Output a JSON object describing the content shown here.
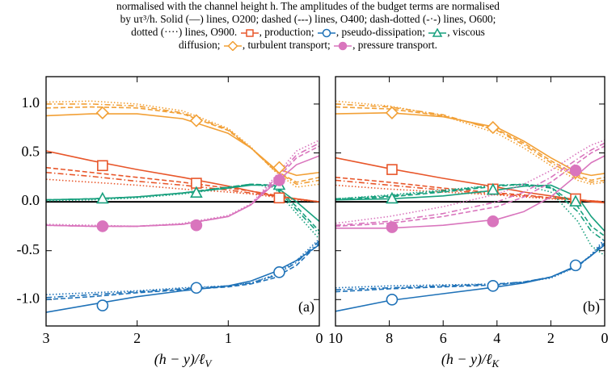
{
  "caption": [
    "normalised with the channel height h. The amplitudes of the budget terms are normalised",
    "by uτ³/h. Solid (—) lines, O200; dashed (‐‐‐) lines, O400; dash-dotted (‐·‐) lines, O600;",
    [
      "dotted (····) lines, O900.",
      ", production;",
      ", pseudo-dissipation;",
      ", viscous"
    ],
    [
      "diffusion;",
      ", turbulent transport;",
      ", pressure transport."
    ]
  ],
  "chart_data": [
    {
      "type": "line",
      "panel_label": "(a)",
      "xlabel": "(h − y)/ℓ",
      "xlabel_subscript": "V",
      "xlim": [
        3,
        0
      ],
      "xticks": [
        3,
        2,
        1,
        0
      ],
      "ylim": [
        -1.27,
        1.28
      ],
      "yticks": [
        {
          "value": 1,
          "label": "1.0"
        },
        0.5,
        {
          "value": 0,
          "label": "0.0"
        },
        -0.5,
        {
          "value": -1,
          "label": "-1.0"
        }
      ],
      "show_ytick_labels": true,
      "zero_line": true,
      "x": [
        3,
        2.5,
        2,
        1.5,
        1,
        0.75,
        0.5,
        0.25,
        0
      ],
      "series": [
        {
          "color": "#e8562a",
          "dash": "solid",
          "values": [
            0.52,
            0.42,
            0.33,
            0.25,
            0.16,
            0.11,
            0.06,
            0.03,
            0.0
          ]
        },
        {
          "color": "#e8562a",
          "dash": "dashed",
          "values": [
            0.35,
            0.3,
            0.25,
            0.2,
            0.14,
            0.11,
            0.07,
            0.03,
            0
          ]
        },
        {
          "color": "#e8562a",
          "dash": "dashdot",
          "values": [
            0.3,
            0.26,
            0.21,
            0.17,
            0.12,
            0.09,
            0.06,
            0.03,
            0
          ]
        },
        {
          "color": "#e8562a",
          "dash": "dotted",
          "values": [
            0.23,
            0.2,
            0.17,
            0.13,
            0.1,
            0.08,
            0.05,
            0.02,
            0
          ]
        },
        {
          "color": "#1f72b8",
          "dash": "solid",
          "values": [
            -1.13,
            -1.05,
            -0.97,
            -0.91,
            -0.86,
            -0.81,
            -0.72,
            -0.6,
            -0.44
          ]
        },
        {
          "color": "#1f72b8",
          "dash": "dashed",
          "values": [
            -1.0,
            -0.97,
            -0.93,
            -0.9,
            -0.87,
            -0.84,
            -0.78,
            -0.65,
            -0.42
          ]
        },
        {
          "color": "#1f72b8",
          "dash": "dashdot",
          "values": [
            -0.98,
            -0.95,
            -0.92,
            -0.89,
            -0.86,
            -0.83,
            -0.76,
            -0.62,
            -0.4
          ]
        },
        {
          "color": "#1f72b8",
          "dash": "dotted",
          "values": [
            -0.95,
            -0.93,
            -0.91,
            -0.88,
            -0.86,
            -0.83,
            -0.75,
            -0.6,
            -0.38
          ]
        },
        {
          "color": "#18a07e",
          "dash": "solid",
          "values": [
            0.02,
            0.03,
            0.05,
            0.09,
            0.14,
            0.17,
            0.17,
            0.0,
            -0.2
          ]
        },
        {
          "color": "#18a07e",
          "dash": "dashed",
          "values": [
            0.02,
            0.03,
            0.05,
            0.09,
            0.15,
            0.18,
            0.17,
            -0.05,
            -0.3
          ]
        },
        {
          "color": "#18a07e",
          "dash": "dashdot",
          "values": [
            0.02,
            0.03,
            0.05,
            0.09,
            0.15,
            0.18,
            0.16,
            -0.08,
            -0.33
          ]
        },
        {
          "color": "#18a07e",
          "dash": "dotted",
          "values": [
            0.01,
            0.02,
            0.04,
            0.08,
            0.14,
            0.18,
            0.15,
            -0.12,
            -0.38
          ]
        },
        {
          "color": "#f2a036",
          "dash": "solid",
          "values": [
            0.88,
            0.9,
            0.9,
            0.85,
            0.7,
            0.55,
            0.35,
            0.27,
            0.3
          ]
        },
        {
          "color": "#f2a036",
          "dash": "dashed",
          "values": [
            0.96,
            0.97,
            0.96,
            0.9,
            0.73,
            0.55,
            0.33,
            0.2,
            0.25
          ]
        },
        {
          "color": "#f2a036",
          "dash": "dashdot",
          "values": [
            1.0,
            1.0,
            0.98,
            0.91,
            0.74,
            0.55,
            0.33,
            0.18,
            0.22
          ]
        },
        {
          "color": "#f2a036",
          "dash": "dotted",
          "values": [
            1.02,
            1.03,
            1.0,
            0.93,
            0.75,
            0.56,
            0.32,
            0.15,
            0.18
          ]
        },
        {
          "color": "#d975bd",
          "dash": "solid",
          "values": [
            -0.24,
            -0.25,
            -0.25,
            -0.23,
            -0.15,
            -0.03,
            0.18,
            0.38,
            0.47
          ]
        },
        {
          "color": "#d975bd",
          "dash": "dashed",
          "values": [
            -0.24,
            -0.25,
            -0.25,
            -0.23,
            -0.15,
            -0.03,
            0.2,
            0.45,
            0.57
          ]
        },
        {
          "color": "#d975bd",
          "dash": "dashdot",
          "values": [
            -0.24,
            -0.25,
            -0.25,
            -0.23,
            -0.15,
            -0.03,
            0.22,
            0.48,
            0.6
          ]
        },
        {
          "color": "#d975bd",
          "dash": "dotted",
          "values": [
            -0.23,
            -0.24,
            -0.25,
            -0.22,
            -0.14,
            -0.02,
            0.24,
            0.52,
            0.63
          ]
        }
      ],
      "markers": [
        {
          "shape": "square",
          "color": "#e8562a",
          "filled": false,
          "x": [
            2.38,
            1.35,
            0.44
          ],
          "values": [
            0.37,
            0.19,
            0.04
          ]
        },
        {
          "shape": "circle",
          "color": "#1f72b8",
          "filled": false,
          "x": [
            2.38,
            1.35,
            0.44
          ],
          "values": [
            -1.06,
            -0.88,
            -0.72
          ]
        },
        {
          "shape": "triangle",
          "color": "#18a07e",
          "filled": false,
          "x": [
            2.38,
            1.35,
            0.44
          ],
          "values": [
            0.03,
            0.09,
            0.17
          ]
        },
        {
          "shape": "diamond",
          "color": "#f2a036",
          "filled": false,
          "x": [
            2.38,
            1.35,
            0.44
          ],
          "values": [
            0.91,
            0.83,
            0.35
          ]
        },
        {
          "shape": "circle",
          "color": "#d975bd",
          "filled": true,
          "x": [
            2.38,
            1.35,
            0.44
          ],
          "values": [
            -0.25,
            -0.24,
            0.22
          ]
        }
      ]
    },
    {
      "type": "line",
      "panel_label": "(b)",
      "xlabel": "(h − y)/ℓ",
      "xlabel_subscript": "K",
      "xlim": [
        10,
        0
      ],
      "xticks": [
        10,
        8,
        6,
        4,
        2,
        0
      ],
      "ylim": [
        -1.27,
        1.28
      ],
      "yticks": [
        1,
        0.5,
        0,
        -0.5,
        -1
      ],
      "show_ytick_labels": false,
      "zero_line": true,
      "x": [
        10,
        8,
        6,
        4,
        3,
        2,
        1,
        0.5,
        0
      ],
      "series": [
        {
          "color": "#e8562a",
          "dash": "solid",
          "values": [
            0.45,
            0.34,
            0.24,
            0.15,
            0.1,
            0.06,
            0.02,
            0.0,
            -0.01
          ]
        },
        {
          "color": "#e8562a",
          "dash": "dashed",
          "values": [
            0.25,
            0.2,
            0.14,
            0.09,
            0.07,
            0.04,
            0.02,
            0.01,
            0
          ]
        },
        {
          "color": "#e8562a",
          "dash": "dashdot",
          "values": [
            0.22,
            0.17,
            0.12,
            0.08,
            0.06,
            0.04,
            0.02,
            0.01,
            0
          ]
        },
        {
          "color": "#e8562a",
          "dash": "dotted",
          "values": [
            0.17,
            0.13,
            0.1,
            0.07,
            0.05,
            0.03,
            0.02,
            0.01,
            0
          ]
        },
        {
          "color": "#1f72b8",
          "dash": "solid",
          "values": [
            -1.12,
            -1.01,
            -0.94,
            -0.87,
            -0.83,
            -0.77,
            -0.65,
            -0.55,
            -0.44
          ]
        },
        {
          "color": "#1f72b8",
          "dash": "dashed",
          "values": [
            -0.92,
            -0.89,
            -0.87,
            -0.85,
            -0.82,
            -0.77,
            -0.65,
            -0.55,
            -0.42
          ]
        },
        {
          "color": "#1f72b8",
          "dash": "dashdot",
          "values": [
            -0.9,
            -0.88,
            -0.86,
            -0.84,
            -0.82,
            -0.77,
            -0.66,
            -0.55,
            -0.4
          ]
        },
        {
          "color": "#1f72b8",
          "dash": "dotted",
          "values": [
            -0.88,
            -0.86,
            -0.85,
            -0.84,
            -0.82,
            -0.78,
            -0.66,
            -0.54,
            -0.38
          ]
        },
        {
          "color": "#18a07e",
          "dash": "solid",
          "values": [
            0.02,
            0.03,
            0.06,
            0.12,
            0.16,
            0.17,
            0.05,
            -0.15,
            -0.3
          ]
        },
        {
          "color": "#18a07e",
          "dash": "dashed",
          "values": [
            0.02,
            0.05,
            0.1,
            0.16,
            0.18,
            0.15,
            -0.05,
            -0.25,
            -0.35
          ]
        },
        {
          "color": "#18a07e",
          "dash": "dashdot",
          "values": [
            0.03,
            0.06,
            0.11,
            0.17,
            0.18,
            0.14,
            -0.1,
            -0.3,
            -0.4
          ]
        },
        {
          "color": "#18a07e",
          "dash": "dotted",
          "values": [
            0.03,
            0.07,
            0.12,
            0.17,
            0.17,
            0.1,
            -0.2,
            -0.45,
            -0.55
          ]
        },
        {
          "color": "#f2a036",
          "dash": "solid",
          "values": [
            0.9,
            0.91,
            0.87,
            0.76,
            0.62,
            0.45,
            0.3,
            0.27,
            0.29
          ]
        },
        {
          "color": "#f2a036",
          "dash": "dashed",
          "values": [
            0.97,
            0.95,
            0.88,
            0.74,
            0.6,
            0.42,
            0.27,
            0.22,
            0.25
          ]
        },
        {
          "color": "#f2a036",
          "dash": "dashdot",
          "values": [
            1.0,
            0.97,
            0.89,
            0.73,
            0.58,
            0.4,
            0.25,
            0.2,
            0.22
          ]
        },
        {
          "color": "#f2a036",
          "dash": "dotted",
          "values": [
            1.03,
            0.98,
            0.88,
            0.7,
            0.55,
            0.37,
            0.22,
            0.18,
            0.2
          ]
        },
        {
          "color": "#d975bd",
          "dash": "solid",
          "values": [
            -0.27,
            -0.27,
            -0.24,
            -0.18,
            -0.1,
            0.05,
            0.28,
            0.4,
            0.47
          ]
        },
        {
          "color": "#d975bd",
          "dash": "dashed",
          "values": [
            -0.25,
            -0.22,
            -0.15,
            -0.05,
            0.05,
            0.2,
            0.4,
            0.5,
            0.57
          ]
        },
        {
          "color": "#d975bd",
          "dash": "dashdot",
          "values": [
            -0.24,
            -0.2,
            -0.12,
            0.0,
            0.1,
            0.25,
            0.44,
            0.53,
            0.6
          ]
        },
        {
          "color": "#d975bd",
          "dash": "dotted",
          "values": [
            -0.22,
            -0.15,
            -0.05,
            0.08,
            0.18,
            0.32,
            0.5,
            0.58,
            0.63
          ]
        }
      ],
      "markers": [
        {
          "shape": "square",
          "color": "#e8562a",
          "filled": false,
          "x": [
            7.9,
            4.15,
            1.08
          ],
          "values": [
            0.33,
            0.13,
            0.03
          ]
        },
        {
          "shape": "circle",
          "color": "#1f72b8",
          "filled": false,
          "x": [
            7.9,
            4.15,
            1.08
          ],
          "values": [
            -1.0,
            -0.86,
            -0.65
          ]
        },
        {
          "shape": "triangle",
          "color": "#18a07e",
          "filled": false,
          "x": [
            7.9,
            4.15,
            1.08
          ],
          "values": [
            0.03,
            0.12,
            0.0
          ]
        },
        {
          "shape": "diamond",
          "color": "#f2a036",
          "filled": false,
          "x": [
            7.9,
            4.15,
            1.08
          ],
          "values": [
            0.91,
            0.76,
            0.3
          ]
        },
        {
          "shape": "circle",
          "color": "#d975bd",
          "filled": true,
          "x": [
            7.9,
            4.15,
            1.08
          ],
          "values": [
            -0.26,
            -0.2,
            0.32
          ]
        }
      ]
    }
  ]
}
